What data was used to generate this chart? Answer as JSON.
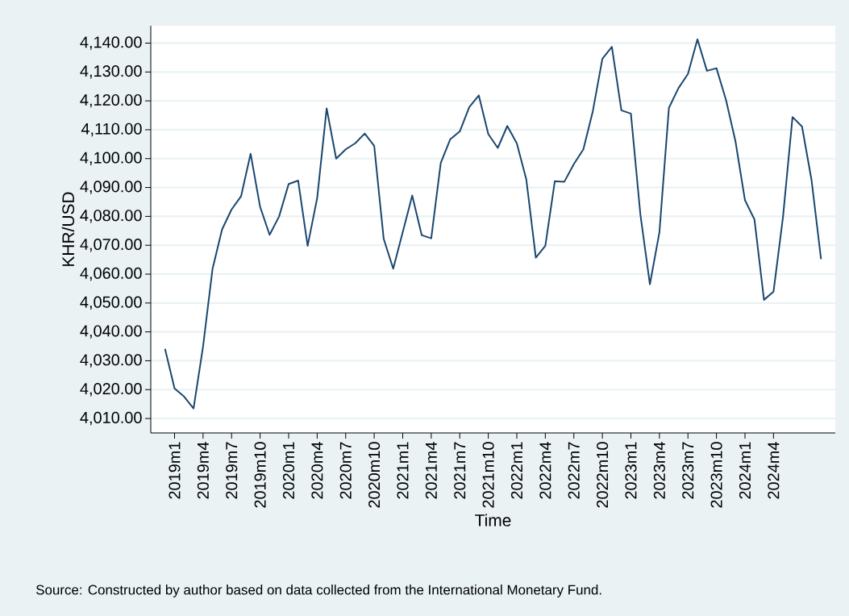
{
  "chart_data": {
    "type": "line",
    "xlabel": "Time",
    "ylabel": "KHR/USD",
    "categories": [
      null,
      "2019m1",
      null,
      null,
      "2019m4",
      null,
      null,
      "2019m7",
      null,
      null,
      "2019m10",
      null,
      null,
      "2020m1",
      null,
      null,
      "2020m4",
      null,
      null,
      "2020m7",
      null,
      null,
      "2020m10",
      null,
      null,
      "2021m1",
      null,
      null,
      "2021m4",
      null,
      null,
      "2021m7",
      null,
      null,
      "2021m10",
      null,
      null,
      "2022m1",
      null,
      null,
      "2022m4",
      null,
      null,
      "2022m7",
      null,
      null,
      "2022m10",
      null,
      null,
      "2023m1",
      null,
      null,
      "2023m4",
      null,
      null,
      "2023m7",
      null,
      null,
      "2023m10",
      null,
      null,
      "2024m1",
      null,
      null,
      "2024m4",
      null,
      null,
      null,
      null,
      null
    ],
    "series": [
      {
        "color": "#1a476f",
        "values": [
          4034.1,
          4020.4,
          4017.6,
          4013.5,
          4035,
          4061.9,
          4075.5,
          4082.4,
          4087,
          4101.7,
          4083.3,
          4073.6,
          4080,
          4091.2,
          4092.4,
          4069.8,
          4086.3,
          4117.4,
          4100,
          4103.2,
          4105.3,
          4108.7,
          4104.4,
          4072.2,
          4061.9,
          4074.5,
          4087.2,
          4073.5,
          4072.4,
          4098.5,
          4106.7,
          4109.4,
          4117.8,
          4121.9,
          4108.5,
          4103.7,
          4111.3,
          4105.3,
          4092.8,
          4065.7,
          4069.8,
          4092.2,
          4092,
          4098.1,
          4103.2,
          4116.5,
          4134.6,
          4138.7,
          4116.7,
          4115.6,
          4080.6,
          4056.5,
          4074.5,
          4117.6,
          4124.4,
          4129.3,
          4141.3,
          4130.4,
          4131.3,
          4120.4,
          4106,
          4085.6,
          4078.9,
          4051.1,
          4053.9,
          4079.8,
          4114.4,
          4111.1,
          4092.6,
          4065.2
        ]
      }
    ],
    "ylim": [
      4005,
      4146
    ],
    "yticks": [
      {
        "value": 4010,
        "label": "4,010.00"
      },
      {
        "value": 4020,
        "label": "4,020.00"
      },
      {
        "value": 4030,
        "label": "4,030.00"
      },
      {
        "value": 4040,
        "label": "4,040.00"
      },
      {
        "value": 4050,
        "label": "4,050.00"
      },
      {
        "value": 4060,
        "label": "4,060.00"
      },
      {
        "value": 4070,
        "label": "4,070.00"
      },
      {
        "value": 4080,
        "label": "4,080.00"
      },
      {
        "value": 4090,
        "label": "4,090.00"
      },
      {
        "value": 4100,
        "label": "4,100.00"
      },
      {
        "value": 4110,
        "label": "4,110.00"
      },
      {
        "value": 4120,
        "label": "4,120.00"
      },
      {
        "value": 4130,
        "label": "4,130.00"
      },
      {
        "value": 4140,
        "label": "4,140.00"
      }
    ],
    "grid": "y",
    "annotations": [
      "Source: Constructed by author based on data collected from the International Monetary Fund."
    ]
  }
}
